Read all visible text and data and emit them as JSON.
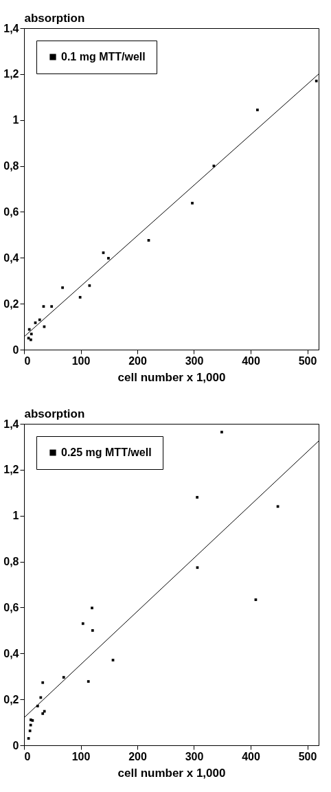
{
  "chart_data": [
    {
      "type": "scatter",
      "xlabel": "cell number x 1,000",
      "ylabel": "absorption",
      "xlim": [
        0,
        520
      ],
      "ylim": [
        0,
        1.4
      ],
      "xticks": [
        0,
        100,
        200,
        300,
        400,
        500
      ],
      "yticks": [
        {
          "value": 0,
          "label": "0"
        },
        {
          "value": 0.2,
          "label": "0,2"
        },
        {
          "value": 0.4,
          "label": "0,4"
        },
        {
          "value": 0.6,
          "label": "0,6"
        },
        {
          "value": 0.8,
          "label": "0,8"
        },
        {
          "value": 1,
          "label": "1"
        },
        {
          "value": 1.2,
          "label": "1,2"
        },
        {
          "value": 1.4,
          "label": "1,4"
        }
      ],
      "grid": false,
      "legend": "top left",
      "series": [
        {
          "name": "0.1 mg MTT/well",
          "marker": "square",
          "color": "#000000",
          "x": [
            8,
            9.3,
            12,
            13,
            20,
            27.6,
            34.5,
            35.7,
            48.7,
            68,
            99,
            115.6,
            140,
            149,
            220,
            297,
            335,
            412,
            516
          ],
          "values": [
            0.05,
            0.088,
            0.043,
            0.068,
            0.117,
            0.13,
            0.188,
            0.1,
            0.188,
            0.27,
            0.228,
            0.279,
            0.422,
            0.398,
            0.476,
            0.638,
            0.8,
            1.044,
            1.17
          ]
        },
        {
          "type": "line",
          "color": "#000000",
          "x": [
            0,
            520
          ],
          "values": [
            0.056,
            1.2
          ]
        }
      ]
    },
    {
      "type": "scatter",
      "xlabel": "cell number x 1,000",
      "ylabel": "absorption",
      "xlim": [
        0,
        520
      ],
      "ylim": [
        0,
        1.4
      ],
      "xticks": [
        0,
        100,
        200,
        300,
        400,
        500
      ],
      "yticks": [
        {
          "value": 0,
          "label": "0"
        },
        {
          "value": 0.2,
          "label": "0,2"
        },
        {
          "value": 0.4,
          "label": "0,4"
        },
        {
          "value": 0.6,
          "label": "0,6"
        },
        {
          "value": 0.8,
          "label": "0,8"
        },
        {
          "value": 1,
          "label": "1"
        },
        {
          "value": 1.2,
          "label": "1,2"
        },
        {
          "value": 1.4,
          "label": "1,4"
        }
      ],
      "grid": false,
      "legend": "top left",
      "series": [
        {
          "name": "0.25 mg MTT/well",
          "marker": "square",
          "color": "#000000",
          "x": [
            8,
            10.5,
            11.7,
            12,
            15,
            24,
            29.5,
            33,
            33,
            36,
            70,
            104,
            113.6,
            120,
            121,
            157,
            305.6,
            306,
            349,
            409,
            448
          ],
          "values": [
            0.03,
            0.063,
            0.088,
            0.111,
            0.108,
            0.171,
            0.208,
            0.273,
            0.138,
            0.148,
            0.296,
            0.53,
            0.278,
            0.598,
            0.5,
            0.371,
            1.08,
            0.774,
            1.364,
            0.634,
            1.04
          ]
        },
        {
          "type": "line",
          "color": "#000000",
          "x": [
            0,
            520
          ],
          "values": [
            0.12,
            1.325
          ]
        }
      ]
    }
  ]
}
